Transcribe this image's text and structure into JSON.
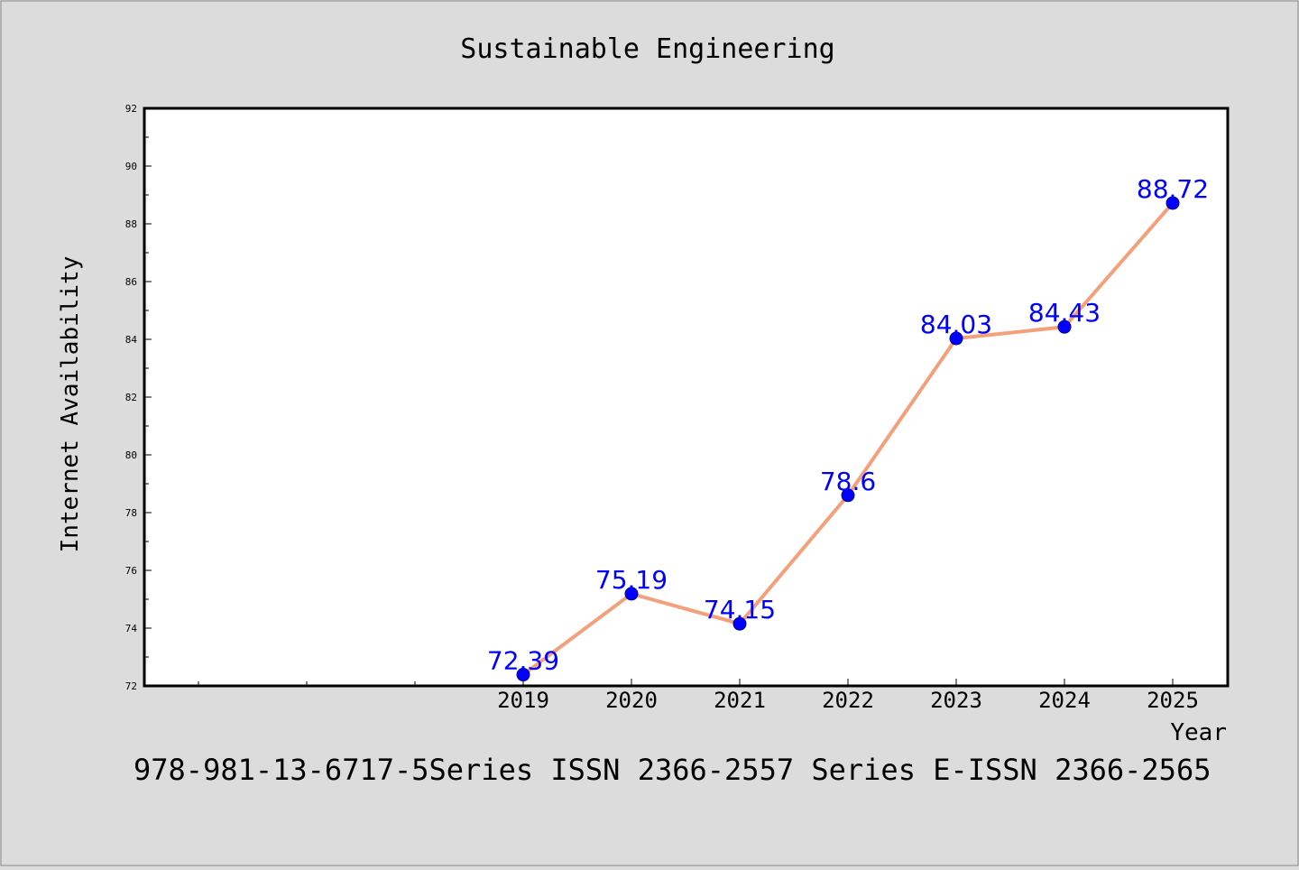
{
  "chart_data": {
    "type": "line",
    "title": "Sustainable Engineering",
    "xlabel": "Year",
    "ylabel": "Internet Availability",
    "x": [
      "2019",
      "2020",
      "2021",
      "2022",
      "2023",
      "2024",
      "2025"
    ],
    "series": [
      {
        "values": [
          72.39,
          75.19,
          74.15,
          78.6,
          84.03,
          84.43,
          88.72
        ],
        "data_labels": [
          "72.39",
          "75.19",
          "74.15",
          "78.6",
          "84.03",
          "84.43",
          "88.72"
        ],
        "line_color": "#f4a07a",
        "marker_color": "#0000ff"
      }
    ],
    "ylim": [
      72,
      92
    ],
    "yticks": [
      72,
      74,
      76,
      78,
      80,
      82,
      84,
      86,
      88,
      90,
      92
    ],
    "grid": false,
    "legend": "none"
  },
  "footer": {
    "text": "978-981-13-6717-5Series ISSN 2366-2557 Series E-ISSN 2366-2565"
  },
  "colors": {
    "background": "#dcdcdc",
    "plot_area": "#ffffff",
    "line": "#f4a07a",
    "marker": "#0000ff",
    "data_label": "#0000ff"
  }
}
